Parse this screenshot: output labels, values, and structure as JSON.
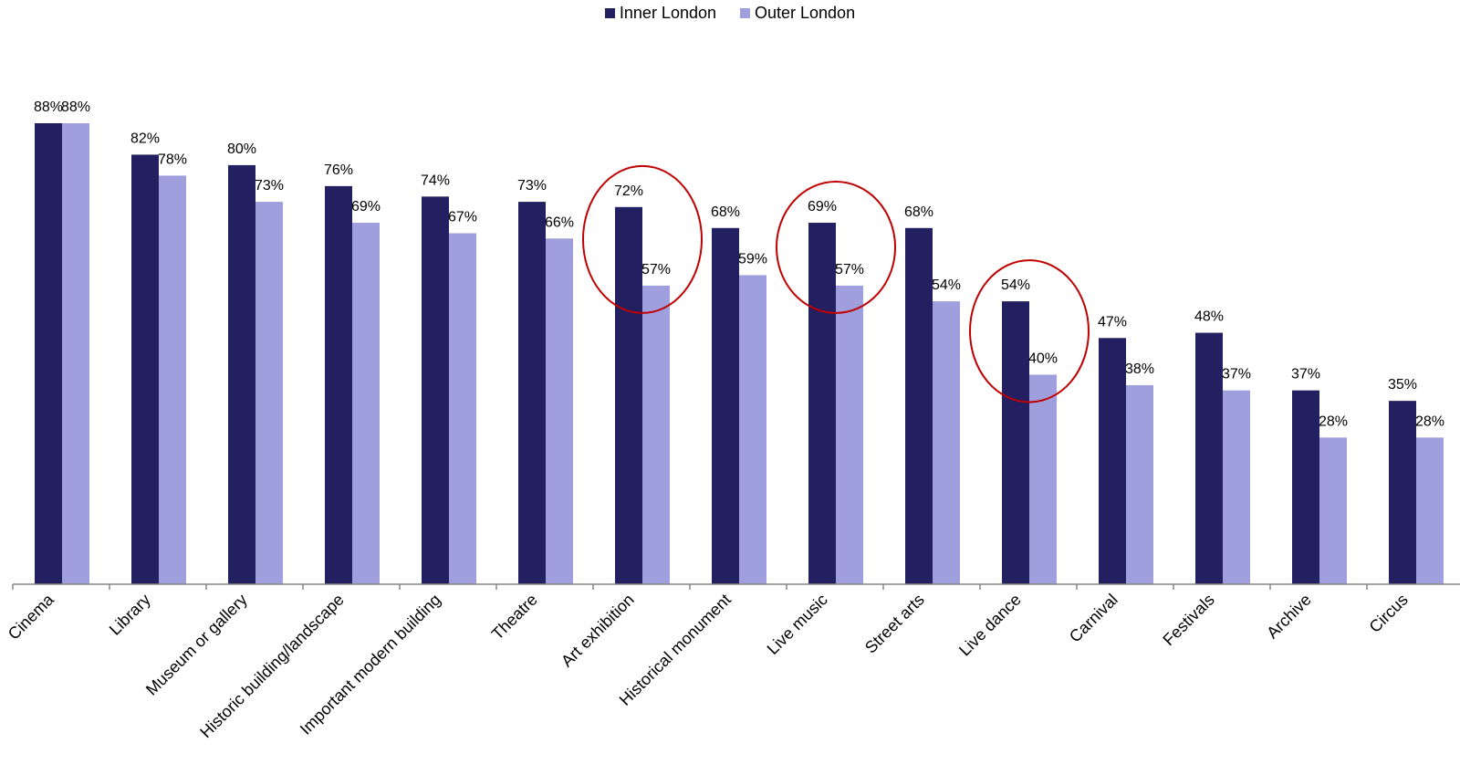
{
  "chart_data": {
    "type": "bar",
    "title": "",
    "xlabel": "",
    "ylabel": "",
    "ylim": [
      0,
      100
    ],
    "grid": false,
    "legend_position": "top-center",
    "categories": [
      "Cinema",
      "Library",
      "Museum or gallery",
      "Historic building/landscape",
      "Important modern building",
      "Theatre",
      "Art exhibition",
      "Historical monument",
      "Live music",
      "Street arts",
      "Live dance",
      "Carnival",
      "Festivals",
      "Archive",
      "Circus"
    ],
    "series": [
      {
        "name": "Inner London",
        "color": "#222060",
        "values": [
          88,
          82,
          80,
          76,
          74,
          73,
          72,
          68,
          69,
          68,
          54,
          47,
          48,
          37,
          35
        ],
        "labels": [
          "88%",
          "82%",
          "80%",
          "76%",
          "74%",
          "73%",
          "72%",
          "68%",
          "69%",
          "68%",
          "54%",
          "47%",
          "48%",
          "37%",
          "35%"
        ]
      },
      {
        "name": "Outer London",
        "color": "#a09fde",
        "values": [
          88,
          78,
          73,
          69,
          67,
          66,
          57,
          59,
          57,
          54,
          40,
          38,
          37,
          28,
          28
        ],
        "labels": [
          "88%",
          "78%",
          "73%",
          "69%",
          "67%",
          "66%",
          "57%",
          "59%",
          "57%",
          "54%",
          "40%",
          "38%",
          "37%",
          "28%",
          "28%"
        ]
      }
    ],
    "annotations": [
      {
        "shape": "ellipse",
        "color": "#c00000",
        "highlight_category": "Art exhibition"
      },
      {
        "shape": "ellipse",
        "color": "#c00000",
        "highlight_category": "Live music"
      },
      {
        "shape": "ellipse",
        "color": "#c00000",
        "highlight_category": "Live dance"
      }
    ]
  }
}
